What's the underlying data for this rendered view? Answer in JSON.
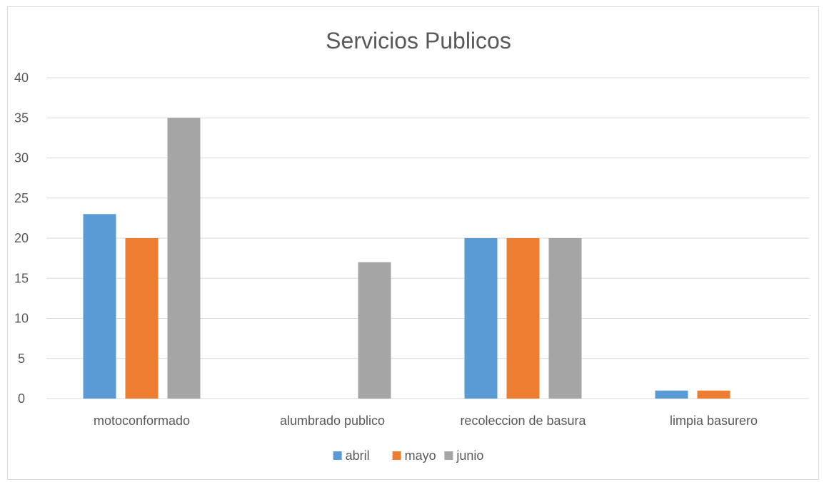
{
  "chart_data": {
    "type": "bar",
    "title": "Servicios Publicos",
    "xlabel": "",
    "ylabel": "",
    "categories": [
      "motoconformado",
      "alumbrado publico",
      "recoleccion de basura",
      "limpia basurero"
    ],
    "series": [
      {
        "name": "abril",
        "values": [
          23,
          0,
          20,
          1
        ],
        "color": "#5B9BD5"
      },
      {
        "name": "mayo",
        "values": [
          20,
          0,
          20,
          1
        ],
        "color": "#ED7D31"
      },
      {
        "name": "junio",
        "values": [
          35,
          17,
          20,
          0
        ],
        "color": "#A5A5A5"
      }
    ],
    "ylim": [
      0,
      40
    ],
    "yticks": [
      "0",
      "5",
      "10",
      "15",
      "20",
      "25",
      "30",
      "35",
      "40"
    ],
    "grid": true,
    "legend_position": "bottom"
  },
  "colors": {
    "gridline": "#D9D9D9",
    "text": "#595959"
  }
}
